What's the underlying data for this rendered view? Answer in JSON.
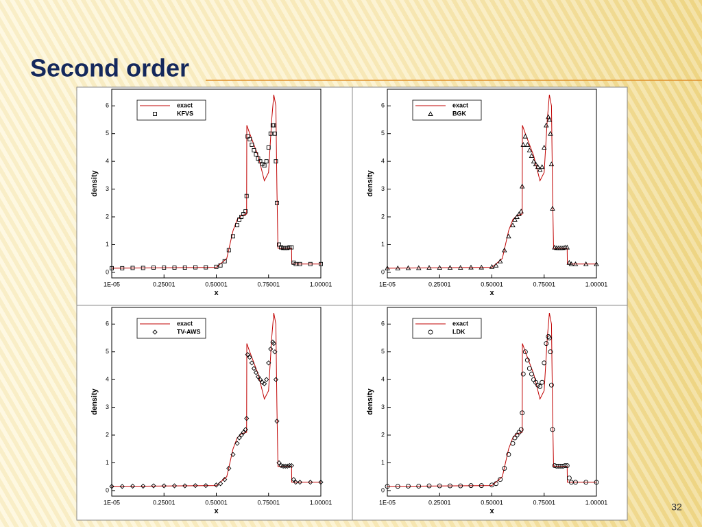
{
  "title": "Second order",
  "page_number": "32",
  "chart_data": [
    {
      "type": "line",
      "xlabel": "x",
      "ylabel": "density",
      "xlim": [
        1e-05,
        1.00001
      ],
      "ylim": [
        -0.2,
        6.6
      ],
      "xticks": [
        {
          "value": 1e-05,
          "label": "1E-05"
        },
        0.25001,
        0.50001,
        0.75001,
        1.00001
      ],
      "yticks": [
        0,
        1,
        2,
        3,
        4,
        5,
        6
      ],
      "series": [
        {
          "name": "exact",
          "color": "#c00000",
          "x": [
            0,
            0.5,
            0.55,
            0.58,
            0.6,
            0.62,
            0.645,
            0.646,
            0.66,
            0.7,
            0.73,
            0.75,
            0.765,
            0.775,
            0.785,
            0.79,
            0.795,
            0.86,
            0.861,
            1.0
          ],
          "values": [
            0.15,
            0.18,
            0.5,
            1.5,
            1.9,
            2.05,
            2.1,
            5.3,
            5.0,
            4.2,
            3.3,
            3.6,
            5.5,
            6.4,
            6.0,
            3.0,
            0.87,
            0.87,
            0.3,
            0.3
          ]
        },
        {
          "name": "KFVS",
          "color": "#000000",
          "marker": "square",
          "x": [
            0,
            0.05,
            0.1,
            0.15,
            0.2,
            0.25,
            0.3,
            0.35,
            0.4,
            0.45,
            0.5,
            0.52,
            0.54,
            0.56,
            0.58,
            0.6,
            0.61,
            0.62,
            0.63,
            0.64,
            0.645,
            0.65,
            0.66,
            0.67,
            0.68,
            0.69,
            0.7,
            0.71,
            0.72,
            0.73,
            0.74,
            0.75,
            0.76,
            0.77,
            0.775,
            0.78,
            0.785,
            0.79,
            0.8,
            0.81,
            0.82,
            0.83,
            0.84,
            0.85,
            0.86,
            0.87,
            0.88,
            0.9,
            0.95,
            1.0
          ],
          "values": [
            0.15,
            0.15,
            0.16,
            0.16,
            0.17,
            0.17,
            0.17,
            0.17,
            0.18,
            0.18,
            0.2,
            0.25,
            0.4,
            0.8,
            1.3,
            1.7,
            1.9,
            2.0,
            2.1,
            2.2,
            2.75,
            4.9,
            4.8,
            4.6,
            4.4,
            4.25,
            4.1,
            4.0,
            3.9,
            3.85,
            4.0,
            4.5,
            5.0,
            5.3,
            5.3,
            5.0,
            4.0,
            2.5,
            1.0,
            0.9,
            0.88,
            0.88,
            0.88,
            0.9,
            0.9,
            0.35,
            0.3,
            0.3,
            0.3,
            0.3
          ]
        }
      ]
    },
    {
      "type": "line",
      "xlabel": "x",
      "ylabel": "density",
      "xlim": [
        1e-05,
        1.00001
      ],
      "ylim": [
        -0.2,
        6.6
      ],
      "xticks": [
        {
          "value": 1e-05,
          "label": "1E-05"
        },
        0.25001,
        0.50001,
        0.75001,
        1.00001
      ],
      "yticks": [
        0,
        1,
        2,
        3,
        4,
        5,
        6
      ],
      "series": [
        {
          "name": "exact",
          "color": "#c00000",
          "x": [
            0,
            0.5,
            0.55,
            0.58,
            0.6,
            0.62,
            0.645,
            0.646,
            0.66,
            0.7,
            0.73,
            0.75,
            0.765,
            0.775,
            0.785,
            0.79,
            0.795,
            0.86,
            0.861,
            1.0
          ],
          "values": [
            0.15,
            0.18,
            0.5,
            1.5,
            1.9,
            2.05,
            2.1,
            5.3,
            5.0,
            4.2,
            3.3,
            3.6,
            5.5,
            6.4,
            6.0,
            3.0,
            0.87,
            0.87,
            0.3,
            0.3
          ]
        },
        {
          "name": "BGK",
          "color": "#000000",
          "marker": "triangle",
          "x": [
            0,
            0.05,
            0.1,
            0.15,
            0.2,
            0.25,
            0.3,
            0.35,
            0.4,
            0.45,
            0.5,
            0.52,
            0.54,
            0.56,
            0.58,
            0.6,
            0.61,
            0.62,
            0.63,
            0.64,
            0.645,
            0.65,
            0.66,
            0.67,
            0.68,
            0.69,
            0.7,
            0.71,
            0.72,
            0.73,
            0.74,
            0.75,
            0.76,
            0.77,
            0.775,
            0.78,
            0.785,
            0.79,
            0.8,
            0.81,
            0.82,
            0.83,
            0.84,
            0.85,
            0.86,
            0.87,
            0.88,
            0.9,
            0.95,
            1.0
          ],
          "values": [
            0.15,
            0.15,
            0.16,
            0.16,
            0.17,
            0.17,
            0.17,
            0.17,
            0.18,
            0.18,
            0.2,
            0.25,
            0.4,
            0.8,
            1.3,
            1.7,
            1.9,
            2.0,
            2.1,
            2.2,
            3.1,
            4.6,
            4.9,
            4.6,
            4.4,
            4.2,
            4.0,
            3.9,
            3.8,
            3.7,
            3.8,
            4.5,
            5.3,
            5.6,
            5.5,
            5.0,
            3.9,
            2.3,
            0.9,
            0.88,
            0.88,
            0.88,
            0.88,
            0.9,
            0.9,
            0.35,
            0.3,
            0.3,
            0.3,
            0.3
          ]
        }
      ]
    },
    {
      "type": "line",
      "xlabel": "x",
      "ylabel": "density",
      "xlim": [
        1e-05,
        1.00001
      ],
      "ylim": [
        -0.2,
        6.6
      ],
      "xticks": [
        {
          "value": 1e-05,
          "label": "1E-05"
        },
        0.25001,
        0.50001,
        0.75001,
        1.00001
      ],
      "yticks": [
        0,
        1,
        2,
        3,
        4,
        5,
        6
      ],
      "series": [
        {
          "name": "exact",
          "color": "#c00000",
          "x": [
            0,
            0.5,
            0.55,
            0.58,
            0.6,
            0.62,
            0.645,
            0.646,
            0.66,
            0.7,
            0.73,
            0.75,
            0.765,
            0.775,
            0.785,
            0.79,
            0.795,
            0.86,
            0.861,
            1.0
          ],
          "values": [
            0.15,
            0.18,
            0.5,
            1.5,
            1.9,
            2.05,
            2.1,
            5.3,
            5.0,
            4.2,
            3.3,
            3.6,
            5.5,
            6.4,
            6.0,
            3.0,
            0.87,
            0.87,
            0.3,
            0.3
          ]
        },
        {
          "name": "TV-AWS",
          "color": "#000000",
          "marker": "diamond",
          "x": [
            0,
            0.05,
            0.1,
            0.15,
            0.2,
            0.25,
            0.3,
            0.35,
            0.4,
            0.45,
            0.5,
            0.52,
            0.54,
            0.56,
            0.58,
            0.6,
            0.61,
            0.62,
            0.63,
            0.64,
            0.645,
            0.65,
            0.66,
            0.67,
            0.68,
            0.69,
            0.7,
            0.71,
            0.72,
            0.73,
            0.74,
            0.75,
            0.76,
            0.77,
            0.775,
            0.78,
            0.785,
            0.79,
            0.8,
            0.81,
            0.82,
            0.83,
            0.84,
            0.85,
            0.86,
            0.87,
            0.88,
            0.9,
            0.95,
            1.0
          ],
          "values": [
            0.15,
            0.15,
            0.16,
            0.16,
            0.17,
            0.17,
            0.17,
            0.17,
            0.18,
            0.18,
            0.2,
            0.25,
            0.4,
            0.8,
            1.3,
            1.7,
            1.9,
            2.0,
            2.1,
            2.2,
            2.6,
            4.9,
            4.8,
            4.6,
            4.4,
            4.25,
            4.1,
            4.0,
            3.9,
            3.85,
            4.0,
            4.6,
            5.1,
            5.35,
            5.3,
            5.0,
            4.0,
            2.5,
            1.0,
            0.9,
            0.88,
            0.88,
            0.88,
            0.9,
            0.9,
            0.4,
            0.3,
            0.3,
            0.3,
            0.3
          ]
        }
      ]
    },
    {
      "type": "line",
      "xlabel": "x",
      "ylabel": "density",
      "xlim": [
        1e-05,
        1.00001
      ],
      "ylim": [
        -0.2,
        6.6
      ],
      "xticks": [
        {
          "value": 1e-05,
          "label": "1E-05"
        },
        0.25001,
        0.50001,
        0.75001,
        1.00001
      ],
      "yticks": [
        0,
        1,
        2,
        3,
        4,
        5,
        6
      ],
      "series": [
        {
          "name": "exact",
          "color": "#c00000",
          "x": [
            0,
            0.5,
            0.55,
            0.58,
            0.6,
            0.62,
            0.645,
            0.646,
            0.66,
            0.7,
            0.73,
            0.75,
            0.765,
            0.775,
            0.785,
            0.79,
            0.795,
            0.86,
            0.861,
            1.0
          ],
          "values": [
            0.15,
            0.18,
            0.5,
            1.5,
            1.9,
            2.05,
            2.1,
            5.3,
            5.0,
            4.2,
            3.3,
            3.6,
            5.5,
            6.4,
            6.0,
            3.0,
            0.87,
            0.87,
            0.3,
            0.3
          ]
        },
        {
          "name": "LDK",
          "color": "#000000",
          "marker": "circle",
          "x": [
            0,
            0.05,
            0.1,
            0.15,
            0.2,
            0.25,
            0.3,
            0.35,
            0.4,
            0.45,
            0.5,
            0.52,
            0.54,
            0.56,
            0.58,
            0.6,
            0.61,
            0.62,
            0.63,
            0.64,
            0.645,
            0.65,
            0.66,
            0.67,
            0.68,
            0.69,
            0.7,
            0.71,
            0.72,
            0.73,
            0.74,
            0.75,
            0.76,
            0.77,
            0.775,
            0.78,
            0.785,
            0.79,
            0.8,
            0.81,
            0.82,
            0.83,
            0.84,
            0.85,
            0.86,
            0.87,
            0.88,
            0.9,
            0.95,
            1.0
          ],
          "values": [
            0.15,
            0.15,
            0.16,
            0.16,
            0.17,
            0.17,
            0.17,
            0.17,
            0.18,
            0.18,
            0.2,
            0.25,
            0.4,
            0.8,
            1.3,
            1.7,
            1.9,
            2.0,
            2.1,
            2.2,
            2.8,
            4.2,
            5.0,
            4.7,
            4.4,
            4.2,
            4.0,
            3.9,
            3.8,
            3.75,
            3.9,
            4.6,
            5.3,
            5.55,
            5.5,
            5.0,
            3.8,
            2.2,
            0.9,
            0.88,
            0.88,
            0.88,
            0.88,
            0.9,
            0.9,
            0.45,
            0.3,
            0.3,
            0.3,
            0.3
          ]
        }
      ]
    }
  ]
}
